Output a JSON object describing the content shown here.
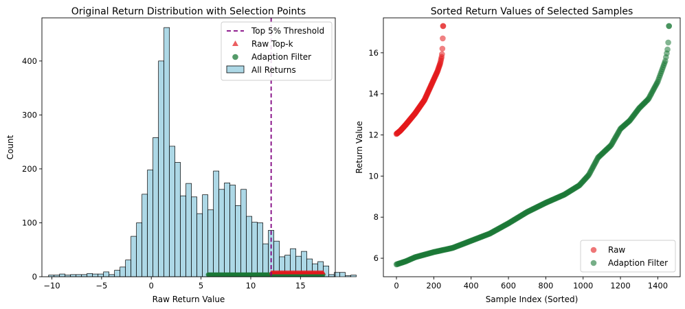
{
  "chart_data": [
    {
      "type": "bar",
      "title": "Original Return Distribution with Selection Points",
      "xlabel": "Raw Return Value",
      "ylabel": "Count",
      "xlim": [
        -11,
        18.5
      ],
      "ylim": [
        0,
        480
      ],
      "xticks": [
        -10,
        -5,
        0,
        5,
        10,
        15
      ],
      "yticks": [
        0,
        100,
        200,
        300,
        400
      ],
      "xtick_labels": [
        "−10",
        "−5",
        "0",
        "5",
        "10",
        "15"
      ],
      "ytick_labels": [
        "0",
        "100",
        "200",
        "300",
        "400"
      ],
      "histogram": {
        "name": "All Returns",
        "color": "#add8e6",
        "edgecolor": "#000000",
        "bin_start": -10.33,
        "bin_width": 0.5525,
        "counts": [
          3,
          3,
          5,
          3,
          4,
          4,
          4,
          6,
          5,
          5,
          9,
          4,
          12,
          18,
          31,
          75,
          100,
          153,
          198,
          258,
          400,
          462,
          242,
          212,
          150,
          173,
          148,
          117,
          152,
          124,
          196,
          162,
          174,
          170,
          132,
          162,
          112,
          101,
          100,
          61,
          86,
          66,
          37,
          40,
          52,
          38,
          47,
          33,
          24,
          28,
          20,
          4,
          8,
          8,
          2,
          3
        ]
      },
      "threshold": {
        "name": "Top 5% Threshold",
        "x": 12.05,
        "color": "#800080"
      },
      "rug_series": [
        {
          "name": "Raw Top-k",
          "marker": "triangle",
          "color": "#e31a1c",
          "x_range": [
            12.05,
            17.3
          ]
        },
        {
          "name": "Adaption Filter",
          "marker": "circle",
          "color": "#1b7837",
          "x_range": [
            5.7,
            17.3
          ]
        }
      ],
      "legend": [
        "Top 5% Threshold",
        "Raw Top-k",
        "Adaption Filter",
        "All Returns"
      ],
      "legend_position": "top-right"
    },
    {
      "type": "scatter",
      "title": "Sorted Return Values of Selected Samples",
      "xlabel": "Sample Index (Sorted)",
      "ylabel": "Return Value",
      "xlim": [
        -70,
        1520
      ],
      "ylim": [
        5.1,
        17.7
      ],
      "xticks": [
        0,
        200,
        400,
        600,
        800,
        1000,
        1200,
        1400
      ],
      "yticks": [
        6,
        8,
        10,
        12,
        14,
        16
      ],
      "xtick_labels": [
        "0",
        "200",
        "400",
        "600",
        "800",
        "1000",
        "1200",
        "1400"
      ],
      "ytick_labels": [
        "6",
        "8",
        "10",
        "12",
        "14",
        "16"
      ],
      "series": [
        {
          "name": "Raw",
          "color": "#e31a1c",
          "count": 250,
          "curve": [
            [
              0,
              12.05
            ],
            [
              20,
              12.2
            ],
            [
              50,
              12.5
            ],
            [
              100,
              13.05
            ],
            [
              150,
              13.7
            ],
            [
              190,
              14.5
            ],
            [
              220,
              15.1
            ],
            [
              235,
              15.5
            ],
            [
              242,
              15.8
            ],
            [
              245,
              16.0
            ],
            [
              247,
              16.4
            ],
            [
              249,
              17.0
            ],
            [
              250,
              17.3
            ]
          ]
        },
        {
          "name": "Adaption Filter",
          "color": "#1b7837",
          "count": 1460,
          "curve": [
            [
              0,
              5.7
            ],
            [
              50,
              5.85
            ],
            [
              100,
              6.05
            ],
            [
              200,
              6.3
            ],
            [
              300,
              6.5
            ],
            [
              400,
              6.85
            ],
            [
              500,
              7.2
            ],
            [
              600,
              7.7
            ],
            [
              700,
              8.25
            ],
            [
              800,
              8.7
            ],
            [
              900,
              9.1
            ],
            [
              980,
              9.55
            ],
            [
              1030,
              10.05
            ],
            [
              1080,
              10.9
            ],
            [
              1150,
              11.5
            ],
            [
              1200,
              12.3
            ],
            [
              1250,
              12.7
            ],
            [
              1300,
              13.3
            ],
            [
              1350,
              13.75
            ],
            [
              1400,
              14.6
            ],
            [
              1440,
              15.6
            ],
            [
              1455,
              16.3
            ],
            [
              1460,
              17.3
            ]
          ]
        }
      ],
      "legend": [
        "Raw",
        "Adaption Filter"
      ],
      "legend_position": "lower-right"
    }
  ]
}
